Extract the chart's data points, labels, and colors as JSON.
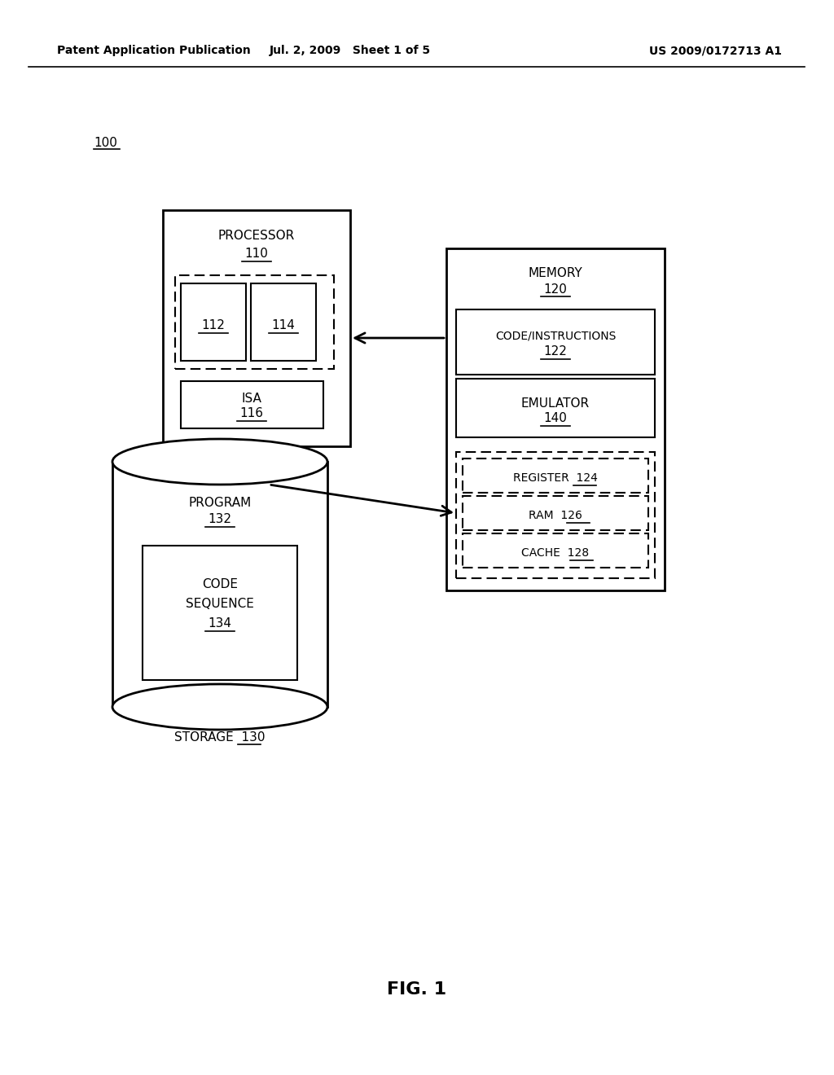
{
  "header_left": "Patent Application Publication",
  "header_mid": "Jul. 2, 2009   Sheet 1 of 5",
  "header_right": "US 2009/0172713 A1",
  "fig_label": "FIG. 1",
  "ref_100": "100",
  "bg_color": "#ffffff"
}
